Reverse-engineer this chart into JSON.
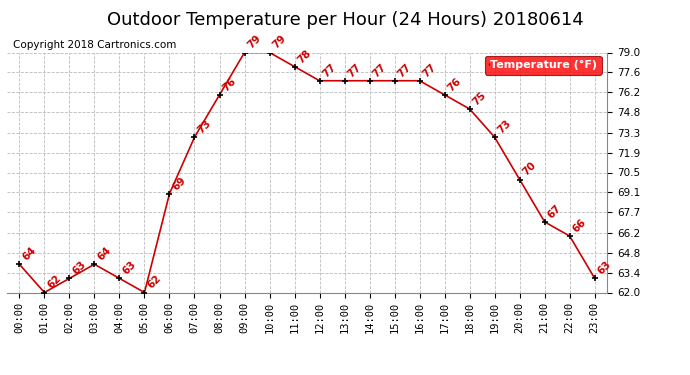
{
  "title": "Outdoor Temperature per Hour (24 Hours) 20180614",
  "copyright_text": "Copyright 2018 Cartronics.com",
  "legend_label": "Temperature (°F)",
  "hours": [
    "00:00",
    "01:00",
    "02:00",
    "03:00",
    "04:00",
    "05:00",
    "06:00",
    "07:00",
    "08:00",
    "09:00",
    "10:00",
    "11:00",
    "12:00",
    "13:00",
    "14:00",
    "15:00",
    "16:00",
    "17:00",
    "18:00",
    "19:00",
    "20:00",
    "21:00",
    "22:00",
    "23:00"
  ],
  "temps": [
    64,
    62,
    63,
    64,
    63,
    62,
    69,
    73,
    76,
    79,
    79,
    78,
    77,
    77,
    77,
    77,
    77,
    76,
    75,
    73,
    70,
    67,
    66,
    63
  ],
  "line_color": "#cc0000",
  "marker_color": "#000000",
  "label_color": "#cc0000",
  "background_color": "#ffffff",
  "grid_color": "#bbbbbb",
  "ylim_min": 62.0,
  "ylim_max": 79.0,
  "yticks": [
    62.0,
    63.4,
    64.8,
    66.2,
    67.7,
    69.1,
    70.5,
    71.9,
    73.3,
    74.8,
    76.2,
    77.6,
    79.0
  ],
  "title_fontsize": 13,
  "tick_fontsize": 7.5,
  "copyright_fontsize": 7.5,
  "legend_fontsize": 8
}
